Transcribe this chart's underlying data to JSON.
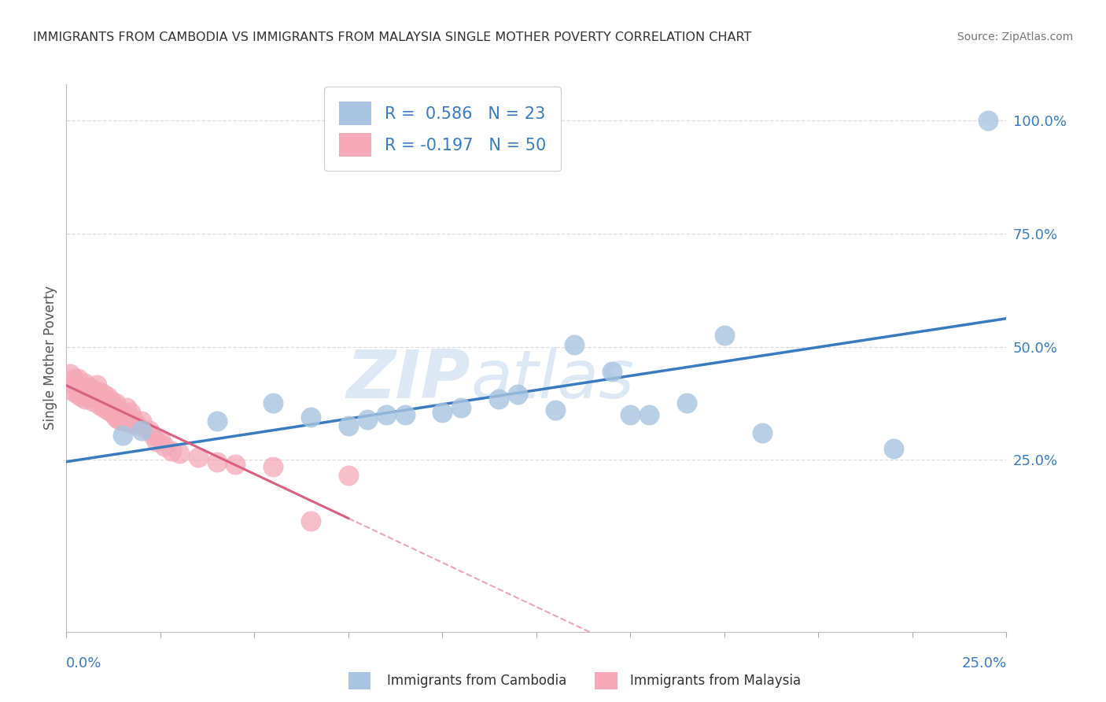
{
  "title": "IMMIGRANTS FROM CAMBODIA VS IMMIGRANTS FROM MALAYSIA SINGLE MOTHER POVERTY CORRELATION CHART",
  "source": "Source: ZipAtlas.com",
  "ylabel": "Single Mother Poverty",
  "yticks": [
    "100.0%",
    "75.0%",
    "50.0%",
    "25.0%"
  ],
  "ytick_values": [
    1.0,
    0.75,
    0.5,
    0.25
  ],
  "xlim": [
    0.0,
    0.25
  ],
  "ylim": [
    -0.13,
    1.08
  ],
  "cambodia_R": 0.586,
  "cambodia_N": 23,
  "malaysia_R": -0.197,
  "malaysia_N": 50,
  "cambodia_color": "#a8c4e0",
  "malaysia_color": "#f4a8b8",
  "cambodia_line_color": "#3a7bbf",
  "malaysia_line_color": "#d96080",
  "watermark_zip": "ZIP",
  "watermark_atlas": "atlas",
  "watermark_color": "#dce8f4",
  "background_color": "#ffffff",
  "grid_color": "#dddddd",
  "tick_color": "#aaaaaa",
  "label_color": "#3a7bbf",
  "cambodia_x": [
    0.015,
    0.02,
    0.04,
    0.055,
    0.065,
    0.075,
    0.08,
    0.085,
    0.09,
    0.1,
    0.105,
    0.115,
    0.12,
    0.13,
    0.135,
    0.145,
    0.15,
    0.155,
    0.165,
    0.175,
    0.185,
    0.22,
    0.245
  ],
  "cambodia_y": [
    0.305,
    0.315,
    0.335,
    0.375,
    0.345,
    0.325,
    0.34,
    0.35,
    0.35,
    0.355,
    0.365,
    0.385,
    0.395,
    0.36,
    0.505,
    0.445,
    0.35,
    0.35,
    0.375,
    0.525,
    0.31,
    0.275,
    1.0
  ],
  "malaysia_x": [
    0.001,
    0.001,
    0.002,
    0.002,
    0.003,
    0.003,
    0.003,
    0.004,
    0.004,
    0.005,
    0.005,
    0.006,
    0.006,
    0.007,
    0.007,
    0.008,
    0.008,
    0.009,
    0.009,
    0.01,
    0.01,
    0.011,
    0.011,
    0.012,
    0.012,
    0.013,
    0.013,
    0.014,
    0.014,
    0.015,
    0.016,
    0.016,
    0.017,
    0.017,
    0.018,
    0.019,
    0.02,
    0.022,
    0.023,
    0.024,
    0.025,
    0.026,
    0.028,
    0.03,
    0.035,
    0.04,
    0.045,
    0.055,
    0.065,
    0.075
  ],
  "malaysia_y": [
    0.42,
    0.44,
    0.4,
    0.43,
    0.395,
    0.415,
    0.43,
    0.39,
    0.41,
    0.385,
    0.42,
    0.39,
    0.41,
    0.38,
    0.405,
    0.395,
    0.415,
    0.37,
    0.4,
    0.365,
    0.395,
    0.36,
    0.39,
    0.355,
    0.38,
    0.345,
    0.375,
    0.34,
    0.36,
    0.335,
    0.345,
    0.365,
    0.33,
    0.355,
    0.34,
    0.325,
    0.335,
    0.315,
    0.305,
    0.29,
    0.295,
    0.28,
    0.27,
    0.265,
    0.255,
    0.245,
    0.24,
    0.235,
    0.115,
    0.215
  ]
}
